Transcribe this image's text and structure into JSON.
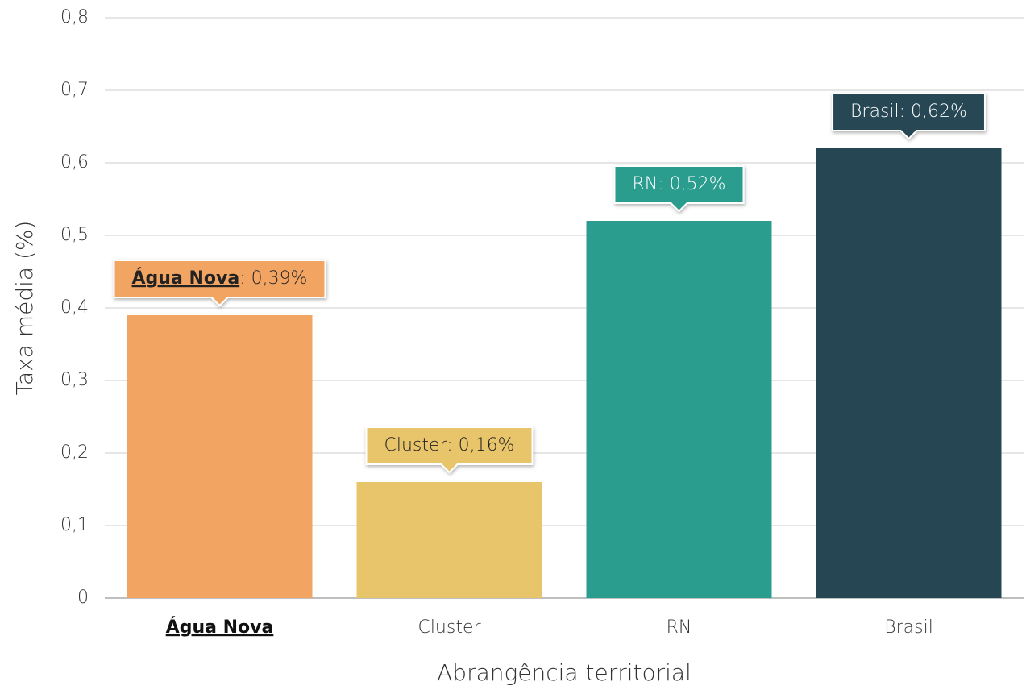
{
  "chart_data": {
    "type": "bar",
    "categories": [
      "Água Nova",
      "Cluster",
      "RN",
      "Brasil"
    ],
    "values": [
      0.39,
      0.16,
      0.52,
      0.62
    ],
    "value_labels": [
      "Água Nova: 0,39%",
      "Cluster: 0,16%",
      "RN: 0,52%",
      "Brasil: 0,62%"
    ],
    "colors": [
      "#f2a462",
      "#e8c46a",
      "#2a9d8f",
      "#264653"
    ],
    "highlight": "Água Nova",
    "x_label": "Abrangência territorial",
    "y_label": "Taxa média (%)",
    "ylim": [
      0,
      0.8
    ],
    "yticks": [
      0,
      {
        "value": 0.1,
        "label": "0,1"
      },
      {
        "value": 0.2,
        "label": "0,2"
      },
      {
        "value": 0.3,
        "label": "0,3"
      },
      {
        "value": 0.4,
        "label": "0,4"
      },
      {
        "value": 0.5,
        "label": "0,5"
      },
      {
        "value": 0.6,
        "label": "0,6"
      },
      {
        "value": 0.7,
        "label": "0,7"
      },
      {
        "value": 0.8,
        "label": "0,8"
      }
    ],
    "grid": true
  }
}
